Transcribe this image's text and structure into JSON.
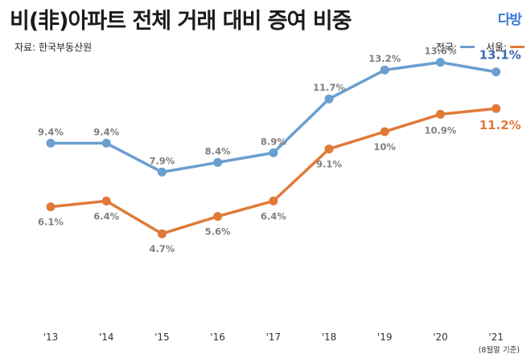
{
  "header": {
    "title": "비(非)아파트 전체 거래 대비 증여 비중",
    "source": "자료: 한국부동산원",
    "logo": "다방"
  },
  "legend": {
    "national_label": "전국:",
    "seoul_label": "서울:"
  },
  "note": "(8월말 기준)",
  "colors": {
    "national": "#6a9fd0",
    "seoul": "#e07a38",
    "national_last_label": "#3a6bb0",
    "seoul_last_label": "#e07a38",
    "label": "#808080"
  },
  "chart_data": {
    "type": "line",
    "categories": [
      "'13",
      "'14",
      "'15",
      "'16",
      "'17",
      "'18",
      "'19",
      "'20",
      "'21"
    ],
    "series": [
      {
        "name": "전국",
        "values": [
          9.4,
          9.4,
          7.9,
          8.4,
          8.9,
          11.7,
          13.2,
          13.6,
          13.1
        ],
        "labels": [
          "9.4%",
          "9.4%",
          "7.9%",
          "8.4%",
          "8.9%",
          "11.7%",
          "13.2%",
          "13.6%",
          "13.1%"
        ]
      },
      {
        "name": "서울",
        "values": [
          6.1,
          6.4,
          4.7,
          5.6,
          6.4,
          9.1,
          10,
          10.9,
          11.2
        ],
        "labels": [
          "6.1%",
          "6.4%",
          "4.7%",
          "5.6%",
          "6.4%",
          "9.1%",
          "10%",
          "10.9%",
          "11.2%"
        ]
      }
    ],
    "ylim": [
      0,
      16
    ],
    "grid": false,
    "legend_position": "top-right"
  }
}
